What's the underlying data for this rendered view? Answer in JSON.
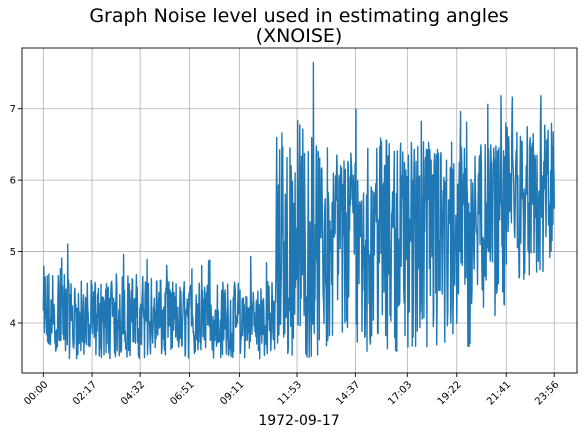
{
  "chart_data": {
    "type": "line",
    "title_lines": [
      "Graph Noise level used in estimating angles",
      "(XNOISE)"
    ],
    "xlabel": "1972-09-17",
    "ylabel": "",
    "x_tick_labels": [
      "00:00",
      "02:17",
      "04:32",
      "06:51",
      "09:11",
      "11:53",
      "14:37",
      "17:03",
      "19:22",
      "21:41",
      "23:56"
    ],
    "x_tick_minutes": [
      0,
      137,
      272,
      411,
      551,
      713,
      877,
      1023,
      1162,
      1301,
      1436
    ],
    "xlim_minutes": [
      -60,
      1500
    ],
    "y_ticks": [
      4,
      5,
      6,
      7
    ],
    "ylim": [
      3.3,
      7.85
    ],
    "grid": true,
    "line_color": "#1f77b4",
    "segments": [
      {
        "from": 0,
        "to": 60,
        "base": 3.9,
        "lo": 3.6,
        "hi": 4.8,
        "spike": 5.1
      },
      {
        "from": 60,
        "to": 180,
        "base": 3.95,
        "lo": 3.5,
        "hi": 4.6,
        "spike": 5.2
      },
      {
        "from": 180,
        "to": 330,
        "base": 4.0,
        "lo": 3.5,
        "hi": 4.7,
        "spike": 5.0
      },
      {
        "from": 330,
        "to": 470,
        "base": 3.95,
        "lo": 3.5,
        "hi": 4.6,
        "spike": 4.9
      },
      {
        "from": 470,
        "to": 620,
        "base": 3.9,
        "lo": 3.5,
        "hi": 4.6,
        "spike": 5.1
      },
      {
        "from": 620,
        "to": 650,
        "base": 4.0,
        "lo": 3.5,
        "hi": 4.6,
        "spike": 5.0
      },
      {
        "from": 650,
        "to": 760,
        "base": 4.6,
        "lo": 3.5,
        "hi": 6.9,
        "spike": 7.7
      },
      {
        "from": 760,
        "to": 900,
        "base": 5.2,
        "lo": 3.5,
        "hi": 6.5,
        "spike": 7.0
      },
      {
        "from": 900,
        "to": 1060,
        "base": 5.4,
        "lo": 3.6,
        "hi": 6.6,
        "spike": 6.9
      },
      {
        "from": 1060,
        "to": 1200,
        "base": 5.4,
        "lo": 3.5,
        "hi": 6.6,
        "spike": 7.0
      },
      {
        "from": 1200,
        "to": 1300,
        "base": 5.5,
        "lo": 4.1,
        "hi": 6.5,
        "spike": 7.2
      },
      {
        "from": 1300,
        "to": 1436,
        "base": 5.7,
        "lo": 4.6,
        "hi": 6.8,
        "spike": 7.4
      }
    ],
    "x_values_minutes": "continuous from 0 to 1436",
    "note_values": "dense time series; mostly between 3.5 and 4.5 until ~11:00, then 3.5–7.0 with max ~7.7 near 12:10, and 4.5–7.4 after 20:00"
  }
}
